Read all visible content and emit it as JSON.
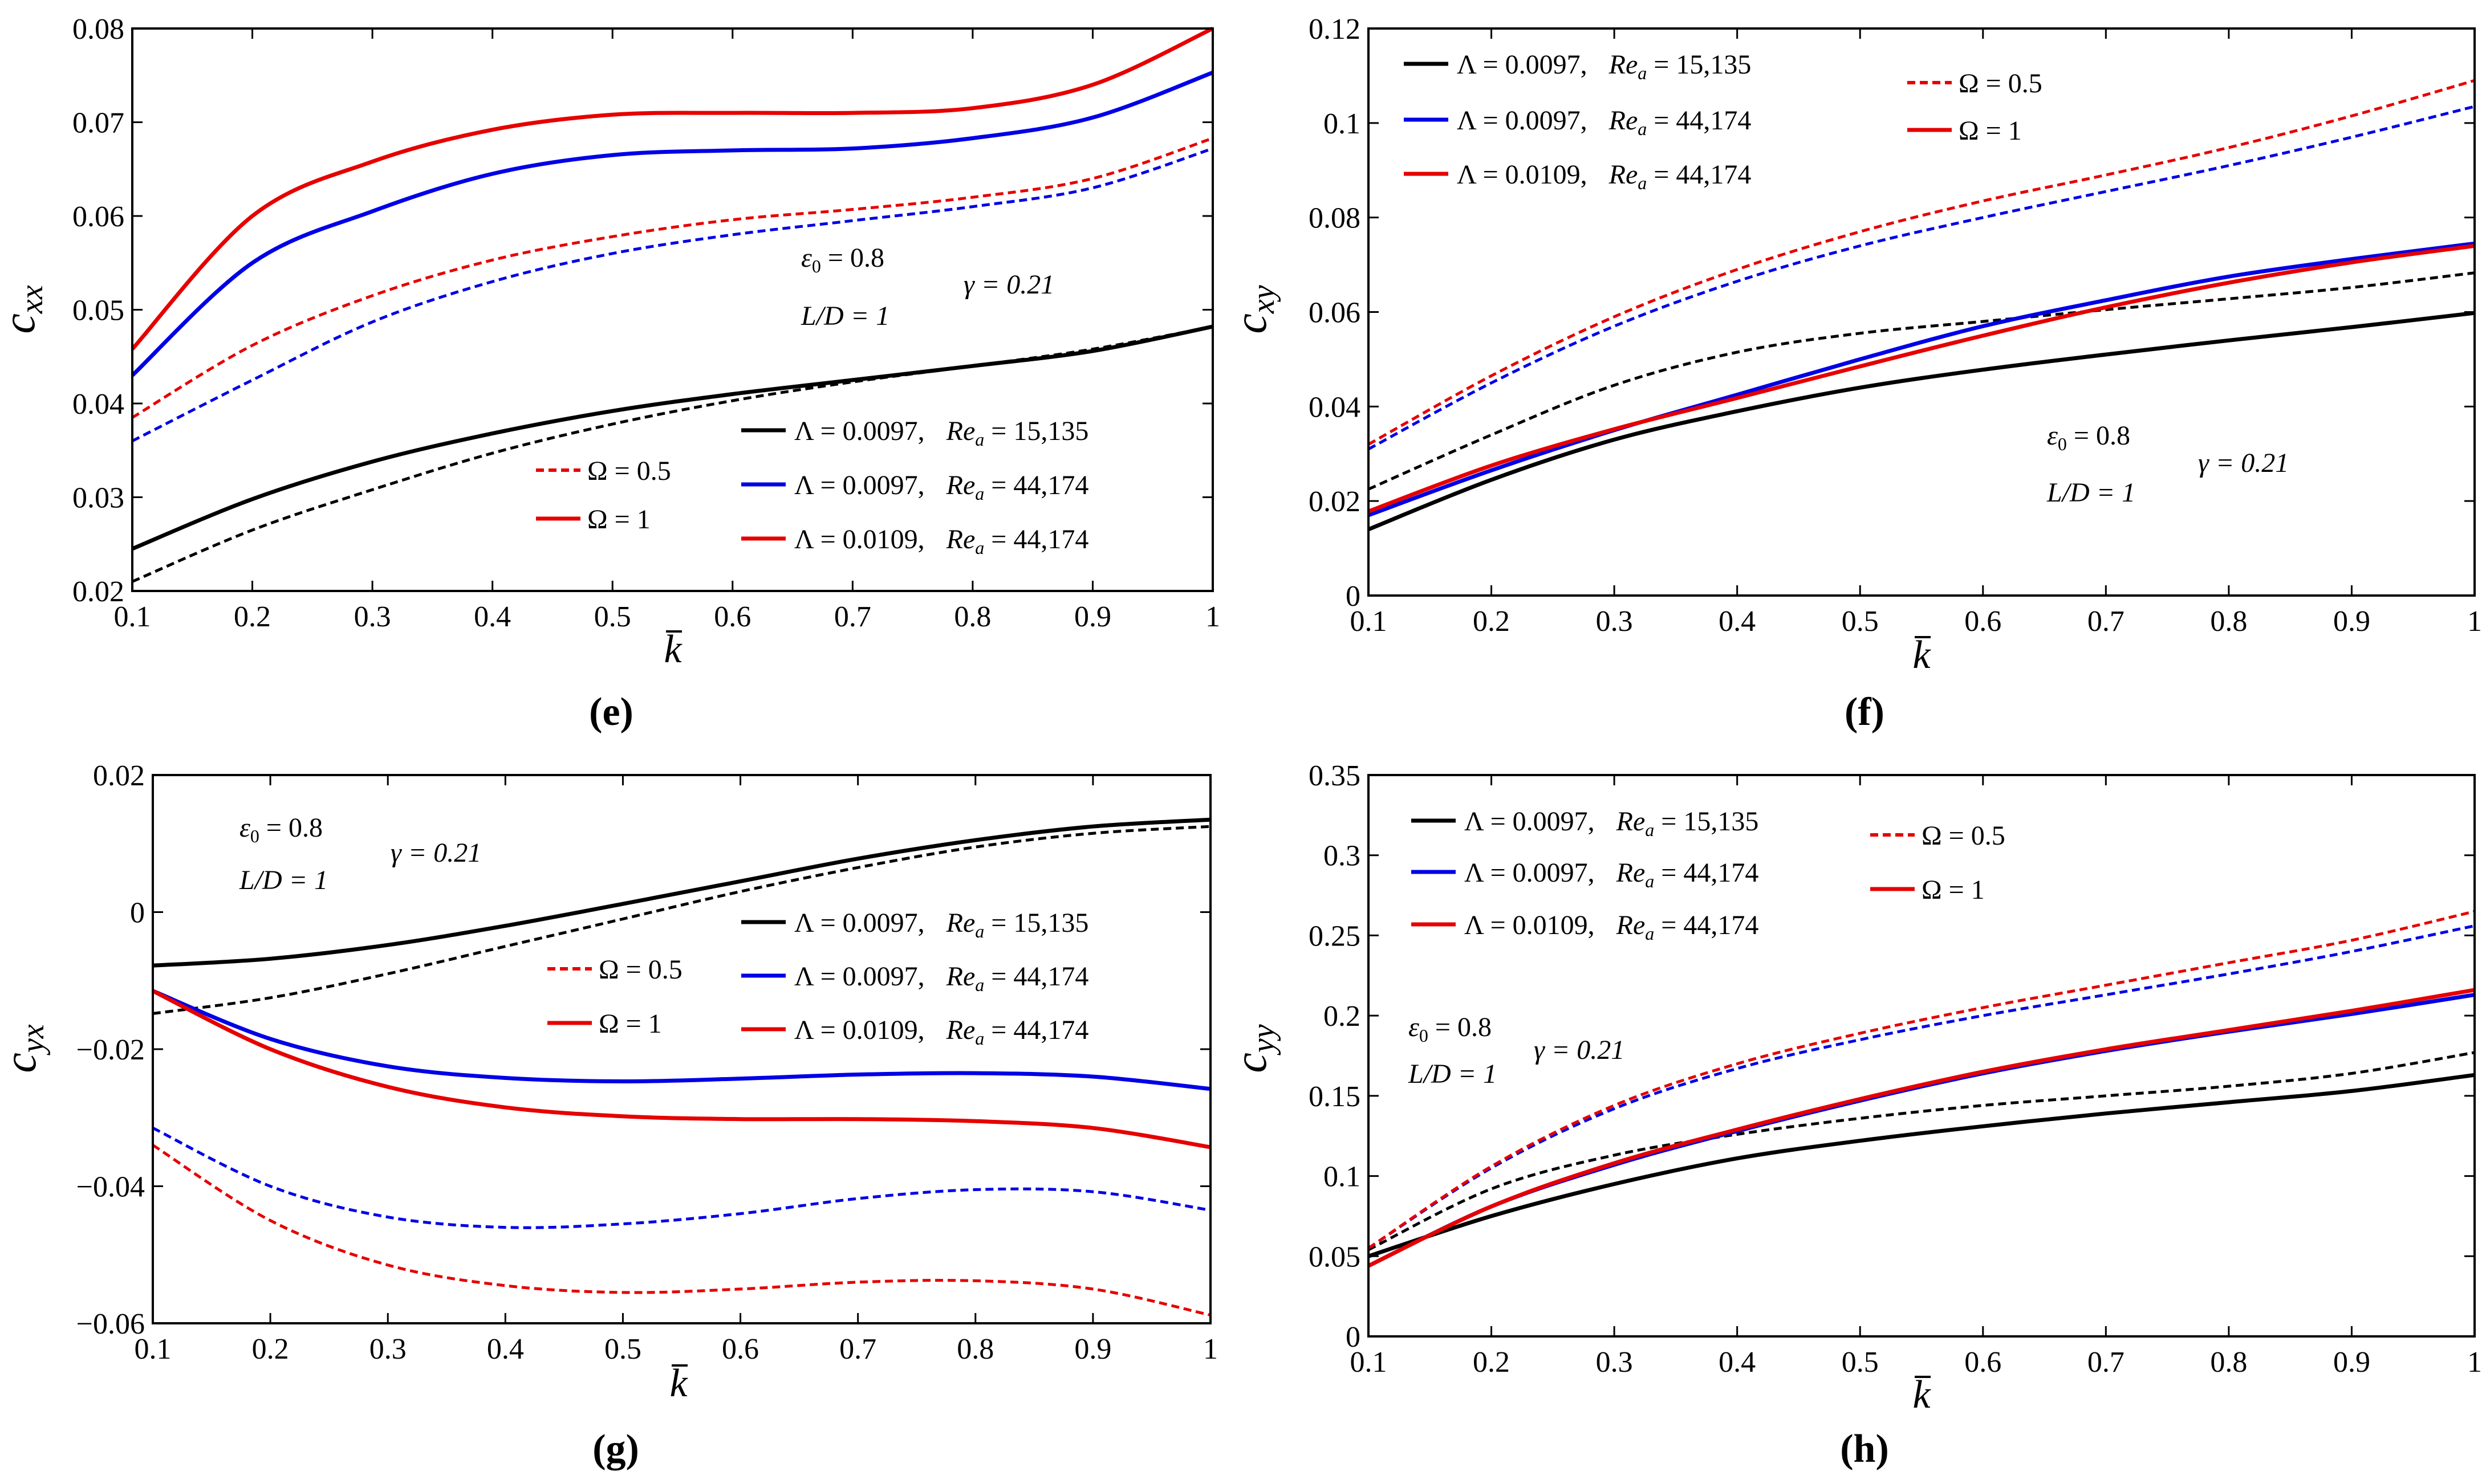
{
  "colors": {
    "lam1": "#000000",
    "lam2": "#0000e6",
    "lam3": "#e60000"
  },
  "legend_lambda": [
    {
      "lambda": "Λ = 0.0097,",
      "re": "Re",
      "sub": "a",
      "val": " = 15,135"
    },
    {
      "lambda": "Λ = 0.0097,",
      "re": "Re",
      "sub": "a",
      "val": " = 44,174"
    },
    {
      "lambda": "Λ = 0.0109,",
      "re": "Re",
      "sub": "a",
      "val": " = 44,174"
    }
  ],
  "legend_omega": [
    {
      "label": "Ω = 0.5",
      "style": "dashed"
    },
    {
      "label": "Ω = 1",
      "style": "solid"
    }
  ],
  "params": {
    "eps": "ε",
    "eps_sub": "0",
    "eps_val": " = 0.8",
    "ld": "L/D = 1",
    "gamma": "γ = 0.21"
  },
  "chart_data": [
    {
      "type": "line",
      "panel": "(e)",
      "ylabel": "c",
      "ylabel_sub": "xx",
      "xlabel": "k",
      "xlim": [
        0.1,
        1
      ],
      "ylim": [
        0.02,
        0.08
      ],
      "xticks": [
        "0.1",
        "0.2",
        "0.3",
        "0.4",
        "0.5",
        "0.6",
        "0.7",
        "0.8",
        "0.9",
        "1"
      ],
      "yticks": [
        "0.02",
        "0.03",
        "0.04",
        "0.05",
        "0.06",
        "0.07",
        "0.08"
      ],
      "x": [
        0.1,
        0.2,
        0.3,
        0.4,
        0.5,
        0.6,
        0.7,
        0.8,
        0.9,
        1.0
      ],
      "series": [
        {
          "name": "Λ = 0.0097, Re_a = 15,135, Ω = 1",
          "color": "lam1",
          "dash": false,
          "values": [
            0.0245,
            0.0298,
            0.0338,
            0.0368,
            0.0392,
            0.041,
            0.0425,
            0.044,
            0.0456,
            0.0482
          ]
        },
        {
          "name": "Λ = 0.0097, Re_a = 15,135, Ω = 0.5",
          "color": "lam1",
          "dash": true,
          "values": [
            0.021,
            0.0265,
            0.0308,
            0.0347,
            0.0378,
            0.0403,
            0.0423,
            0.044,
            0.0458,
            0.0482
          ]
        },
        {
          "name": "Λ = 0.0097, Re_a = 44,174, Ω = 1",
          "color": "lam2",
          "dash": false,
          "values": [
            0.043,
            0.055,
            0.0605,
            0.0645,
            0.0665,
            0.067,
            0.0672,
            0.0683,
            0.0705,
            0.0753
          ]
        },
        {
          "name": "Λ = 0.0097, Re_a = 44,174, Ω = 0.5",
          "color": "lam2",
          "dash": true,
          "values": [
            0.036,
            0.0425,
            0.0487,
            0.053,
            0.056,
            0.058,
            0.0595,
            0.061,
            0.063,
            0.0672
          ]
        },
        {
          "name": "Λ = 0.0109, Re_a = 44,174, Ω = 1",
          "color": "lam3",
          "dash": false,
          "values": [
            0.0458,
            0.06,
            0.0658,
            0.0692,
            0.0708,
            0.071,
            0.071,
            0.0715,
            0.074,
            0.08
          ]
        },
        {
          "name": "Λ = 0.0109, Re_a = 44,174, Ω = 0.5",
          "color": "lam3",
          "dash": true,
          "values": [
            0.0385,
            0.0462,
            0.0515,
            0.0553,
            0.0578,
            0.0596,
            0.0607,
            0.062,
            0.064,
            0.0683
          ]
        }
      ]
    },
    {
      "type": "line",
      "panel": "(f)",
      "ylabel": "c",
      "ylabel_sub": "xy",
      "xlabel": "k",
      "xlim": [
        0.1,
        1
      ],
      "ylim": [
        0,
        0.12
      ],
      "xticks": [
        "0.1",
        "0.2",
        "0.3",
        "0.4",
        "0.5",
        "0.6",
        "0.7",
        "0.8",
        "0.9",
        "1"
      ],
      "yticks": [
        "0",
        "0.02",
        "0.04",
        "0.06",
        "0.08",
        "0.1",
        "0.12"
      ],
      "x": [
        0.1,
        0.2,
        0.3,
        0.4,
        0.5,
        0.6,
        0.7,
        0.8,
        0.9,
        1.0
      ],
      "series": [
        {
          "name": "Λ = 0.0097, Re_a = 15,135, Ω = 1",
          "color": "lam1",
          "dash": false,
          "values": [
            0.014,
            0.0245,
            0.033,
            0.039,
            0.044,
            0.0478,
            0.051,
            0.054,
            0.0568,
            0.0598
          ]
        },
        {
          "name": "Λ = 0.0097, Re_a = 15,135, Ω = 0.5",
          "color": "lam1",
          "dash": true,
          "values": [
            0.0225,
            0.034,
            0.0445,
            0.0515,
            0.0555,
            0.058,
            0.0605,
            0.0628,
            0.0652,
            0.0683
          ]
        },
        {
          "name": "Λ = 0.0097, Re_a = 44,174, Ω = 1",
          "color": "lam2",
          "dash": false,
          "values": [
            0.017,
            0.0265,
            0.035,
            0.0425,
            0.05,
            0.057,
            0.0625,
            0.0675,
            0.0712,
            0.0745
          ]
        },
        {
          "name": "Λ = 0.0097, Re_a = 44,174, Ω = 0.5",
          "color": "lam2",
          "dash": true,
          "values": [
            0.031,
            0.045,
            0.057,
            0.0665,
            0.074,
            0.08,
            0.0855,
            0.091,
            0.097,
            0.1035
          ]
        },
        {
          "name": "Λ = 0.0109, Re_a = 44,174, Ω = 1",
          "color": "lam3",
          "dash": false,
          "values": [
            0.0178,
            0.0275,
            0.0352,
            0.0418,
            0.0485,
            0.055,
            0.061,
            0.0662,
            0.0705,
            0.074
          ]
        },
        {
          "name": "Λ = 0.0109, Re_a = 44,174, Ω = 0.5",
          "color": "lam3",
          "dash": true,
          "values": [
            0.032,
            0.0465,
            0.059,
            0.069,
            0.077,
            0.0835,
            0.089,
            0.0948,
            0.1015,
            0.109
          ]
        }
      ]
    },
    {
      "type": "line",
      "panel": "(g)",
      "ylabel": "c",
      "ylabel_sub": "yx",
      "xlabel": "k",
      "xlim": [
        0.1,
        1
      ],
      "ylim": [
        -0.06,
        0.02
      ],
      "xticks": [
        "0.1",
        "0.2",
        "0.3",
        "0.4",
        "0.5",
        "0.6",
        "0.7",
        "0.8",
        "0.9",
        "1"
      ],
      "yticks": [
        "−0.06",
        "−0.04",
        "−0.02",
        "0",
        "0.02"
      ],
      "x": [
        0.1,
        0.2,
        0.3,
        0.4,
        0.5,
        0.6,
        0.7,
        0.8,
        0.9,
        1.0
      ],
      "series": [
        {
          "name": "Λ = 0.0097, Re_a = 15,135, Ω = 1",
          "color": "lam1",
          "dash": false,
          "values": [
            -0.0078,
            -0.0068,
            -0.0048,
            -0.002,
            0.0012,
            0.0045,
            0.0078,
            0.0105,
            0.0125,
            0.0135
          ]
        },
        {
          "name": "Λ = 0.0097, Re_a = 15,135, Ω = 0.5",
          "color": "lam1",
          "dash": true,
          "values": [
            -0.0148,
            -0.0125,
            -0.009,
            -0.005,
            -0.001,
            0.003,
            0.0065,
            0.0095,
            0.0115,
            0.0125
          ]
        },
        {
          "name": "Λ = 0.0097, Re_a = 44,174, Ω = 1",
          "color": "lam2",
          "dash": false,
          "values": [
            -0.0115,
            -0.0185,
            -0.0225,
            -0.0242,
            -0.0247,
            -0.0243,
            -0.0237,
            -0.0235,
            -0.024,
            -0.0258
          ]
        },
        {
          "name": "Λ = 0.0097, Re_a = 44,174, Ω = 0.5",
          "color": "lam2",
          "dash": true,
          "values": [
            -0.0315,
            -0.04,
            -0.0445,
            -0.046,
            -0.0455,
            -0.044,
            -0.0418,
            -0.0405,
            -0.0408,
            -0.0435
          ]
        },
        {
          "name": "Λ = 0.0109, Re_a = 44,174, Ω = 1",
          "color": "lam3",
          "dash": false,
          "values": [
            -0.0115,
            -0.02,
            -0.0255,
            -0.0285,
            -0.0298,
            -0.0302,
            -0.0302,
            -0.0305,
            -0.0315,
            -0.0343
          ]
        },
        {
          "name": "Λ = 0.0109, Re_a = 44,174, Ω = 0.5",
          "color": "lam3",
          "dash": true,
          "values": [
            -0.034,
            -0.045,
            -0.0515,
            -0.0545,
            -0.0555,
            -0.055,
            -0.054,
            -0.0538,
            -0.055,
            -0.0588
          ]
        }
      ]
    },
    {
      "type": "line",
      "panel": "(h)",
      "ylabel": "c",
      "ylabel_sub": "yy",
      "xlabel": "k",
      "xlim": [
        0.1,
        1
      ],
      "ylim": [
        0,
        0.35
      ],
      "xticks": [
        "0.1",
        "0.2",
        "0.3",
        "0.4",
        "0.5",
        "0.6",
        "0.7",
        "0.8",
        "0.9",
        "1"
      ],
      "yticks": [
        "0",
        "0.05",
        "0.1",
        "0.15",
        "0.2",
        "0.25",
        "0.3",
        "0.35"
      ],
      "x": [
        0.1,
        0.2,
        0.3,
        0.4,
        0.5,
        0.6,
        0.7,
        0.8,
        0.9,
        1.0
      ],
      "series": [
        {
          "name": "Λ = 0.0097, Re_a = 15,135, Ω = 1",
          "color": "lam1",
          "dash": false,
          "values": [
            0.05,
            0.075,
            0.095,
            0.111,
            0.122,
            0.131,
            0.139,
            0.146,
            0.153,
            0.163
          ]
        },
        {
          "name": "Λ = 0.0097, Re_a = 15,135, Ω = 0.5",
          "color": "lam1",
          "dash": true,
          "values": [
            0.054,
            0.092,
            0.113,
            0.126,
            0.136,
            0.144,
            0.15,
            0.156,
            0.164,
            0.177
          ]
        },
        {
          "name": "Λ = 0.0097, Re_a = 44,174, Ω = 1",
          "color": "lam2",
          "dash": false,
          "values": [
            0.044,
            0.081,
            0.107,
            0.128,
            0.147,
            0.164,
            0.178,
            0.19,
            0.201,
            0.213
          ]
        },
        {
          "name": "Λ = 0.0097, Re_a = 44,174, Ω = 0.5",
          "color": "lam2",
          "dash": true,
          "values": [
            0.055,
            0.105,
            0.142,
            0.167,
            0.185,
            0.2,
            0.213,
            0.226,
            0.24,
            0.256
          ]
        },
        {
          "name": "Λ = 0.0109, Re_a = 44,174, Ω = 1",
          "color": "lam3",
          "dash": false,
          "values": [
            0.044,
            0.081,
            0.108,
            0.129,
            0.148,
            0.165,
            0.179,
            0.191,
            0.203,
            0.216
          ]
        },
        {
          "name": "Λ = 0.0109, Re_a = 44,174, Ω = 0.5",
          "color": "lam3",
          "dash": true,
          "values": [
            0.055,
            0.106,
            0.144,
            0.17,
            0.189,
            0.205,
            0.219,
            0.233,
            0.247,
            0.265
          ]
        }
      ]
    }
  ]
}
